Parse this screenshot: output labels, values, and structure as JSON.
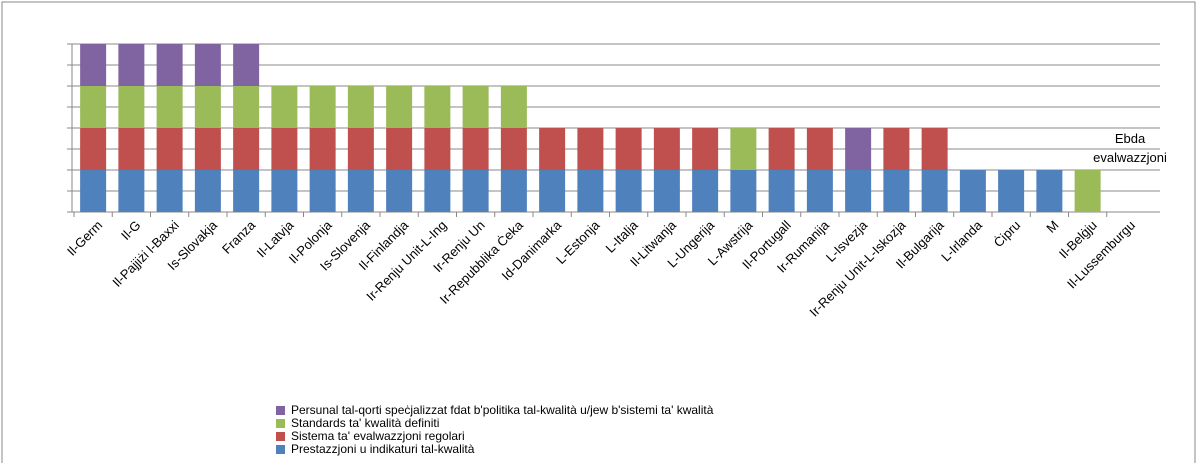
{
  "chart_data": {
    "type": "stacked_bar",
    "categories": [
      "Il-Germ",
      "Il-G",
      "Il-Pajjiżi l-Baxxi",
      "Is-Slovakja",
      "Franza",
      "Il-Latvja",
      "Il-Polonja",
      "Is-Slovenja",
      "Il-Finlandja",
      "Ir-Renju Unit-L-Ing",
      "Ir-Renju Un",
      "Ir-Repubblika Ċeka",
      "Id-Danimarka",
      "L-Estonja",
      "L-Italja",
      "Il-Litwanja",
      "L-Ungerija",
      "L-Awstrija",
      "Il-Portugall",
      "Ir-Rumanija",
      "L-Isvezja",
      "Ir-Renju Unit-L-Iskozja",
      "Il-Bulgarija",
      "L-Irlanda",
      "Ċipru",
      "M",
      "Il-Belġju",
      "Il-Lussemburgu"
    ],
    "series": [
      {
        "name": "Prestazzjoni u indikaturi tal-kwalità",
        "color": "#4f81bd",
        "values": [
          1,
          1,
          1,
          1,
          1,
          1,
          1,
          1,
          1,
          1,
          1,
          1,
          1,
          1,
          1,
          1,
          1,
          1,
          1,
          1,
          1,
          1,
          1,
          1,
          1,
          1,
          0,
          0
        ]
      },
      {
        "name": "Sistema ta' evalwazzjoni regolari",
        "color": "#c0504d",
        "values": [
          1,
          1,
          1,
          1,
          1,
          1,
          1,
          1,
          1,
          1,
          1,
          1,
          1,
          1,
          1,
          1,
          1,
          0,
          1,
          1,
          0,
          1,
          1,
          0,
          0,
          0,
          0,
          0
        ]
      },
      {
        "name": "Standards ta' kwalità definiti",
        "color": "#9bbb59",
        "values": [
          1,
          1,
          1,
          1,
          1,
          1,
          1,
          1,
          1,
          1,
          1,
          1,
          0,
          0,
          0,
          0,
          0,
          1,
          0,
          0,
          0,
          0,
          0,
          0,
          0,
          0,
          1,
          0
        ]
      },
      {
        "name": "Persunal tal-qorti speċjalizzat fdat b'politika tal-kwalità u/jew b'sistemi ta' kwalità",
        "color": "#8064a2",
        "values": [
          1,
          1,
          1,
          1,
          1,
          0,
          0,
          0,
          0,
          0,
          0,
          0,
          0,
          0,
          0,
          0,
          0,
          0,
          0,
          0,
          1,
          0,
          0,
          0,
          0,
          0,
          0,
          0
        ]
      }
    ],
    "annotation": [
      "Ebda",
      "evalwazzjoni"
    ],
    "ylim": [
      0,
      4
    ],
    "yticks": [
      0,
      0.5,
      1,
      1.5,
      2,
      2.5,
      3,
      3.5,
      4
    ],
    "grid": true
  }
}
